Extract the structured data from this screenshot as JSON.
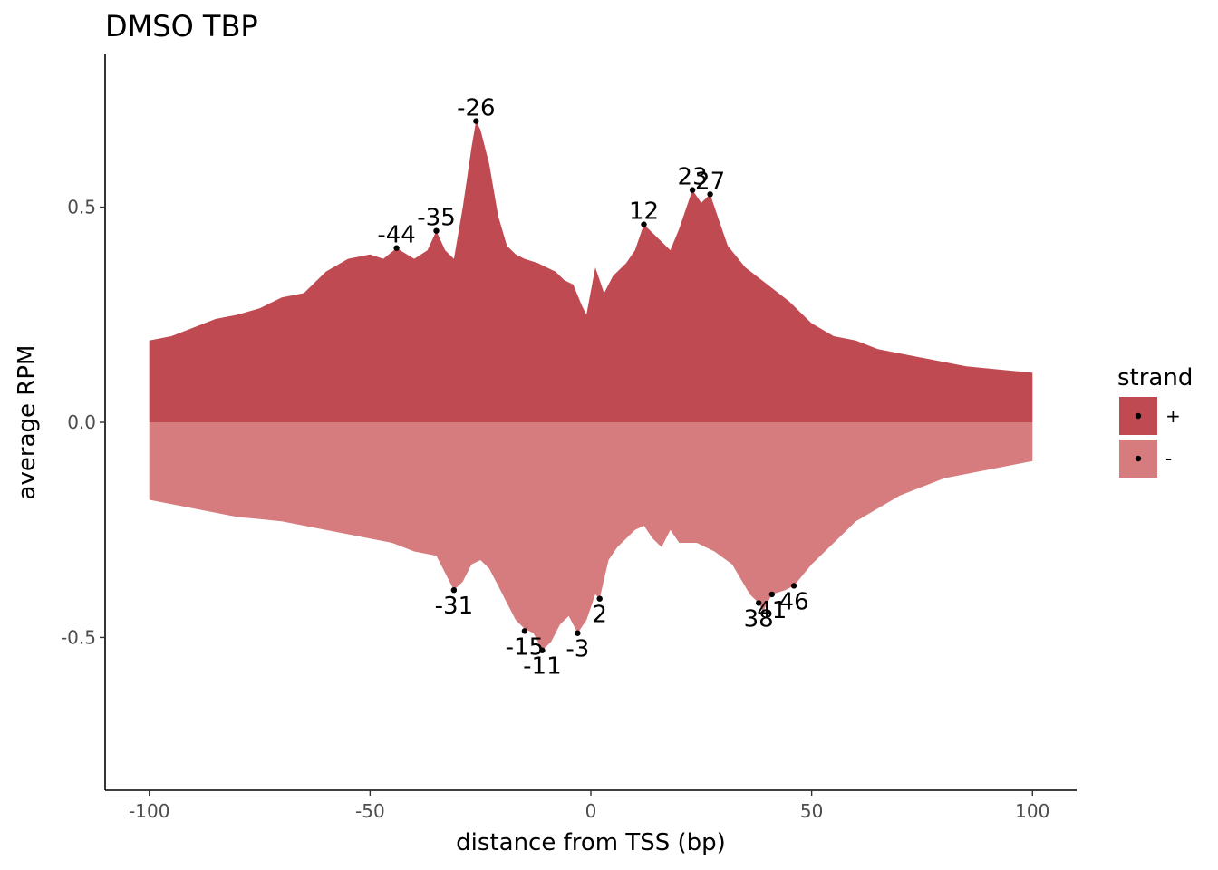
{
  "chart_data": {
    "type": "area",
    "title": "DMSO TBP",
    "xlabel": "distance from TSS (bp)",
    "ylabel": "average RPM",
    "xlim": [
      -110,
      110
    ],
    "ylim": [
      -0.855,
      0.855
    ],
    "xticks": [
      -100,
      -50,
      0,
      50,
      100
    ],
    "xtick_labels": [
      "-100",
      "-50",
      "0",
      "50",
      "100"
    ],
    "yticks": [
      0.5,
      0.0,
      -0.5
    ],
    "ytick_labels": [
      "0.5",
      "0.0",
      "-0.5"
    ],
    "grid": false,
    "legend": {
      "title": "strand",
      "placement": "right",
      "entries": [
        {
          "label": "+",
          "color": "#c04a52"
        },
        {
          "label": "-",
          "color": "#d67b7e"
        }
      ]
    },
    "series": [
      {
        "name": "+",
        "color": "#c04a52",
        "x": [
          -100,
          -95,
          -90,
          -85,
          -80,
          -75,
          -70,
          -65,
          -60,
          -55,
          -50,
          -47,
          -44,
          -40,
          -37,
          -35,
          -33,
          -31,
          -29,
          -27,
          -26,
          -25,
          -23,
          -21,
          -19,
          -17,
          -15,
          -12,
          -10,
          -8,
          -6,
          -4,
          -2,
          -1,
          1,
          3,
          5,
          8,
          10,
          12,
          14,
          16,
          18,
          20,
          21,
          23,
          25,
          27,
          29,
          31,
          35,
          40,
          45,
          50,
          55,
          60,
          65,
          70,
          75,
          80,
          85,
          90,
          95,
          100
        ],
        "values": [
          0.19,
          0.2,
          0.22,
          0.24,
          0.25,
          0.265,
          0.29,
          0.3,
          0.35,
          0.38,
          0.39,
          0.38,
          0.405,
          0.38,
          0.4,
          0.445,
          0.4,
          0.38,
          0.5,
          0.64,
          0.7,
          0.68,
          0.6,
          0.48,
          0.41,
          0.39,
          0.38,
          0.37,
          0.36,
          0.35,
          0.33,
          0.32,
          0.27,
          0.25,
          0.36,
          0.3,
          0.34,
          0.37,
          0.4,
          0.46,
          0.44,
          0.42,
          0.4,
          0.45,
          0.48,
          0.54,
          0.51,
          0.53,
          0.47,
          0.41,
          0.36,
          0.32,
          0.28,
          0.23,
          0.2,
          0.19,
          0.17,
          0.16,
          0.15,
          0.14,
          0.13,
          0.125,
          0.12,
          0.115
        ]
      },
      {
        "name": "-",
        "color": "#d67b7e",
        "x": [
          -100,
          -95,
          -90,
          -85,
          -80,
          -75,
          -70,
          -65,
          -60,
          -55,
          -50,
          -45,
          -40,
          -35,
          -33,
          -31,
          -29,
          -27,
          -25,
          -23,
          -21,
          -19,
          -17,
          -15,
          -13,
          -11,
          -9,
          -7,
          -5,
          -3,
          -1,
          1,
          2,
          4,
          6,
          8,
          10,
          12,
          14,
          16,
          18,
          20,
          24,
          28,
          32,
          36,
          38,
          39,
          41,
          44,
          46,
          50,
          55,
          60,
          65,
          70,
          75,
          80,
          85,
          90,
          95,
          100
        ],
        "values": [
          -0.18,
          -0.19,
          -0.2,
          -0.21,
          -0.22,
          -0.225,
          -0.23,
          -0.24,
          -0.25,
          -0.26,
          -0.27,
          -0.28,
          -0.3,
          -0.31,
          -0.35,
          -0.39,
          -0.37,
          -0.33,
          -0.32,
          -0.34,
          -0.38,
          -0.42,
          -0.46,
          -0.48,
          -0.49,
          -0.53,
          -0.51,
          -0.47,
          -0.45,
          -0.49,
          -0.46,
          -0.4,
          -0.41,
          -0.32,
          -0.29,
          -0.27,
          -0.25,
          -0.24,
          -0.27,
          -0.29,
          -0.25,
          -0.28,
          -0.28,
          -0.3,
          -0.33,
          -0.4,
          -0.42,
          -0.44,
          -0.4,
          -0.39,
          -0.38,
          -0.33,
          -0.28,
          -0.23,
          -0.2,
          -0.17,
          -0.15,
          -0.13,
          -0.12,
          -0.11,
          -0.1,
          -0.09
        ]
      }
    ],
    "annotations": [
      {
        "label": "-26",
        "x": -26,
        "y": 0.7,
        "pos": "above"
      },
      {
        "label": "-44",
        "x": -44,
        "y": 0.405,
        "pos": "above"
      },
      {
        "label": "-35",
        "x": -35,
        "y": 0.445,
        "pos": "above"
      },
      {
        "label": "12",
        "x": 12,
        "y": 0.46,
        "pos": "above"
      },
      {
        "label": "23",
        "x": 23,
        "y": 0.54,
        "pos": "above"
      },
      {
        "label": "27",
        "x": 27,
        "y": 0.53,
        "pos": "above"
      },
      {
        "label": "-31",
        "x": -31,
        "y": -0.39,
        "pos": "below"
      },
      {
        "label": "-15",
        "x": -15,
        "y": -0.485,
        "pos": "below"
      },
      {
        "label": "-11",
        "x": -11,
        "y": -0.53,
        "pos": "below"
      },
      {
        "label": "-3",
        "x": -3,
        "y": -0.49,
        "pos": "below"
      },
      {
        "label": "2",
        "x": 2,
        "y": -0.41,
        "pos": "below"
      },
      {
        "label": "38",
        "x": 38,
        "y": -0.42,
        "pos": "below"
      },
      {
        "label": "41",
        "x": 41,
        "y": -0.4,
        "pos": "below"
      },
      {
        "label": "46",
        "x": 46,
        "y": -0.38,
        "pos": "below"
      }
    ]
  }
}
